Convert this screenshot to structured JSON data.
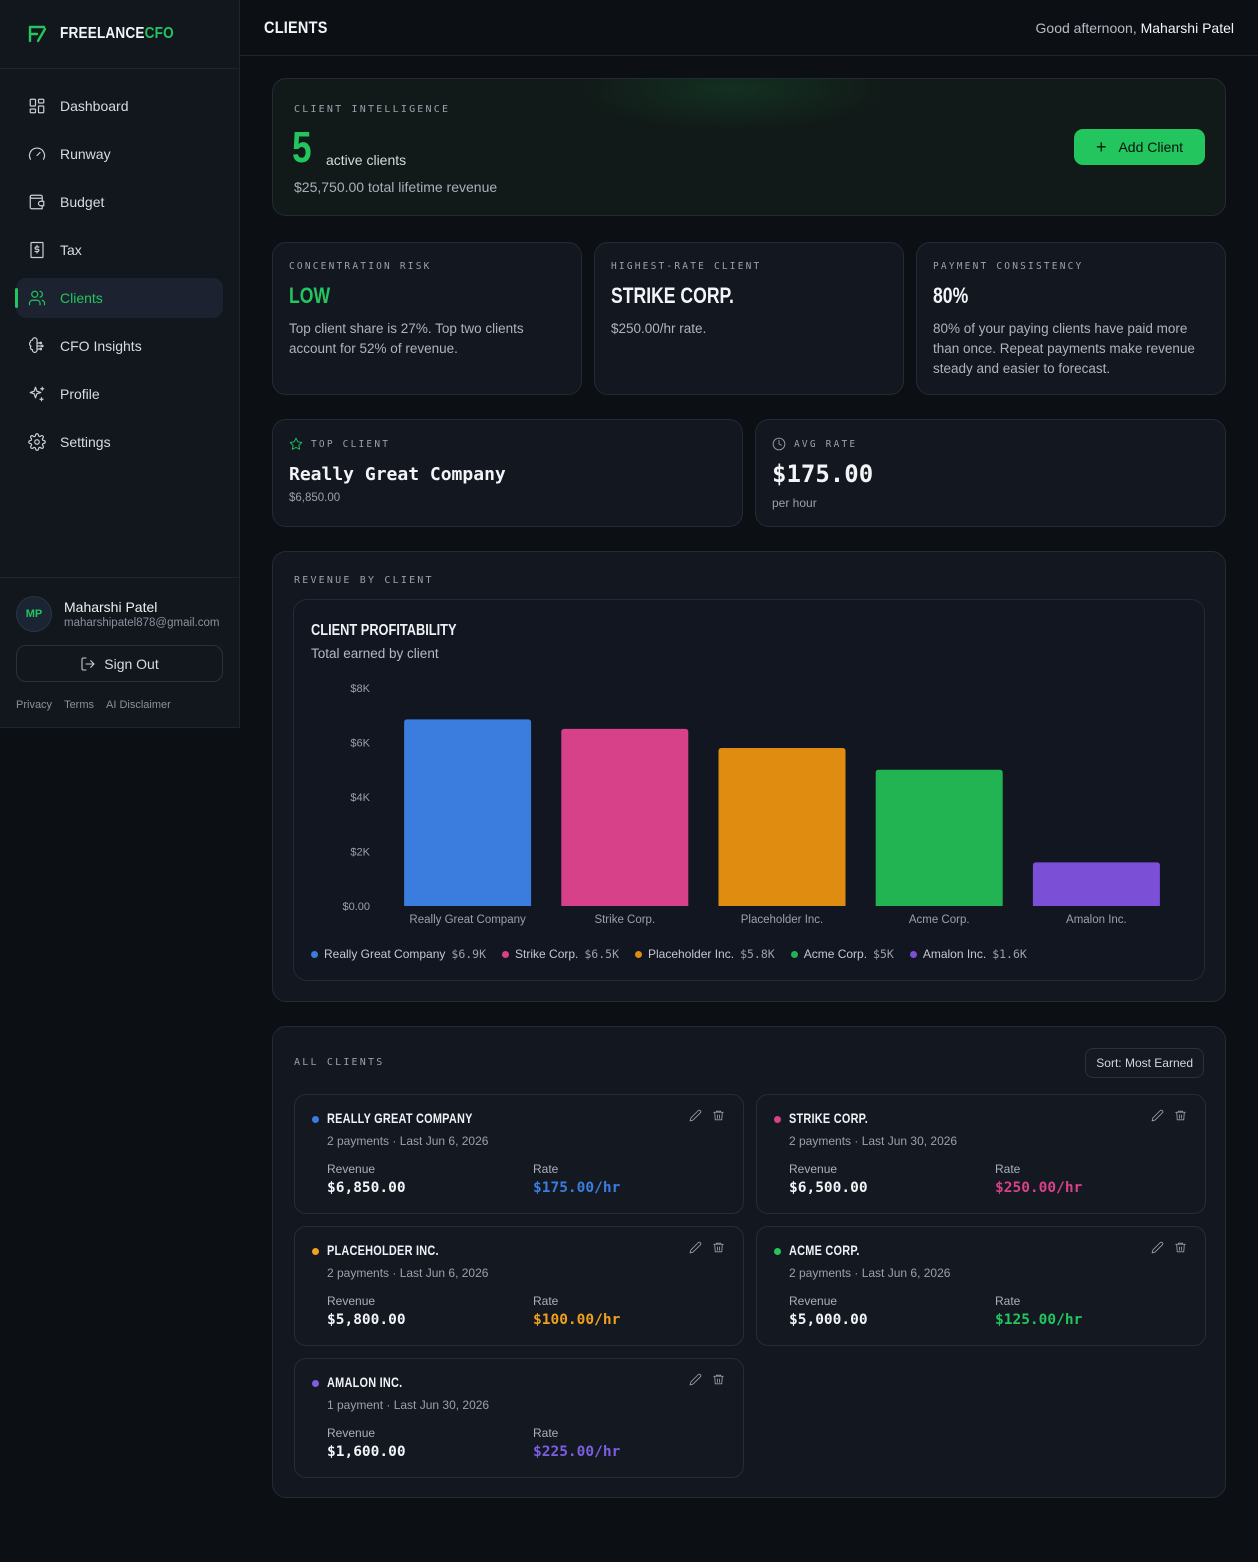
{
  "app": {
    "logo_primary": "FREELANCE",
    "logo_accent": "CFO",
    "accent_color": "#22c55e"
  },
  "sidebar": {
    "items": [
      {
        "label": "Dashboard",
        "icon": "grid-icon"
      },
      {
        "label": "Runway",
        "icon": "gauge-icon"
      },
      {
        "label": "Budget",
        "icon": "wallet-icon"
      },
      {
        "label": "Tax",
        "icon": "receipt-dollar-icon"
      },
      {
        "label": "Clients",
        "icon": "users-icon",
        "active": true
      },
      {
        "label": "CFO Insights",
        "icon": "brain-icon"
      },
      {
        "label": "Profile",
        "icon": "sparkles-icon"
      },
      {
        "label": "Settings",
        "icon": "gear-icon"
      }
    ],
    "user": {
      "initials": "MP",
      "name": "Maharshi Patel",
      "email": "maharshipatel878@gmail.com"
    },
    "signout_label": "Sign Out",
    "footer_links": [
      "Privacy",
      "Terms",
      "AI Disclaimer"
    ]
  },
  "header": {
    "title": "CLIENTS",
    "greeting": "Good afternoon,",
    "user_name": "Maharshi Patel"
  },
  "hero": {
    "eyebrow": "CLIENT INTELLIGENCE",
    "count": "5",
    "count_label": "active clients",
    "lifetime_revenue": "$25,750.00 total lifetime revenue",
    "add_button": "Add Client"
  },
  "metrics": [
    {
      "eyebrow": "CONCENTRATION RISK",
      "value": "LOW",
      "value_color": "#22c55e",
      "desc": "Top client share is 27%. Top two clients account for 52% of revenue."
    },
    {
      "eyebrow": "HIGHEST-RATE CLIENT",
      "value": "STRIKE CORP.",
      "value_color": "#f2f4f7",
      "desc": "$250.00/hr rate."
    },
    {
      "eyebrow": "PAYMENT CONSISTENCY",
      "value": "80%",
      "value_color": "#f2f4f7",
      "desc": "80% of your paying clients have paid more than once. Repeat payments make revenue steady and easier to forecast."
    }
  ],
  "top_client": {
    "eyebrow": "TOP CLIENT",
    "name": "Really Great Company",
    "revenue": "$6,850.00",
    "icon": "star-icon"
  },
  "avg_rate": {
    "eyebrow": "AVG RATE",
    "value": "$175.00",
    "unit": "per hour",
    "icon": "clock-icon"
  },
  "revenue_section": {
    "eyebrow": "REVENUE BY CLIENT",
    "chart_title": "CLIENT PROFITABILITY",
    "chart_subtitle": "Total earned by client"
  },
  "chart_data": {
    "type": "bar",
    "title": "CLIENT PROFITABILITY",
    "subtitle": "Total earned by client",
    "categories": [
      "Really Great Company",
      "Strike Corp.",
      "Placeholder Inc.",
      "Acme Corp.",
      "Amalon Inc."
    ],
    "values": [
      6850,
      6500,
      5800,
      5000,
      1600
    ],
    "colors": [
      "#3b7dde",
      "#d6418a",
      "#e08c10",
      "#22b352",
      "#7b4fd6"
    ],
    "yticks": [
      0,
      2000,
      4000,
      6000,
      8000
    ],
    "ytick_labels": [
      "$0.00",
      "$2K",
      "$4K",
      "$6K",
      "$8K"
    ],
    "ylim": [
      0,
      7600
    ],
    "legend": [
      {
        "name": "Really Great Company",
        "value": "$6.9K"
      },
      {
        "name": "Strike Corp.",
        "value": "$6.5K"
      },
      {
        "name": "Placeholder Inc.",
        "value": "$5.8K"
      },
      {
        "name": "Acme Corp.",
        "value": "$5K"
      },
      {
        "name": "Amalon Inc.",
        "value": "$1.6K"
      }
    ],
    "legend_position": "bottom-left",
    "grid": false
  },
  "all_clients": {
    "eyebrow": "ALL CLIENTS",
    "sort_label": "Sort: Most Earned",
    "revenue_label": "Revenue",
    "rate_label": "Rate",
    "clients": [
      {
        "name": "Really Great Company",
        "color": "#3b7dde",
        "meta": "2 payments · Last Jun 6, 2026",
        "revenue": "$6,850.00",
        "rate": "$175.00/hr"
      },
      {
        "name": "Strike Corp.",
        "color": "#d6418a",
        "meta": "2 payments · Last Jun 30, 2026",
        "revenue": "$6,500.00",
        "rate": "$250.00/hr"
      },
      {
        "name": "Placeholder Inc.",
        "color": "#f0a020",
        "meta": "2 payments · Last Jun 6, 2026",
        "revenue": "$5,800.00",
        "rate": "$100.00/hr"
      },
      {
        "name": "Acme Corp.",
        "color": "#22c55e",
        "meta": "2 payments · Last Jun 6, 2026",
        "revenue": "$5,000.00",
        "rate": "$125.00/hr"
      },
      {
        "name": "Amalon Inc.",
        "color": "#7b5fe0",
        "meta": "1 payment · Last Jun 30, 2026",
        "revenue": "$1,600.00",
        "rate": "$225.00/hr"
      }
    ]
  }
}
